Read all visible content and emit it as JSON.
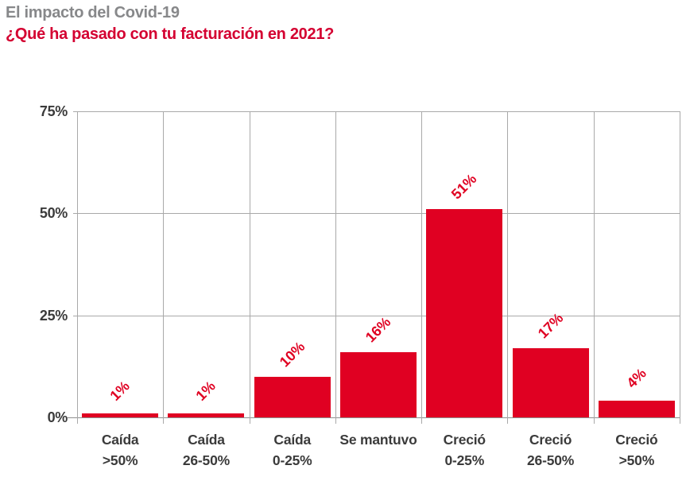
{
  "header": {
    "title": "El impacto del Covid-19",
    "subtitle": "¿Qué ha pasado con tu facturación en 2021?"
  },
  "chart_data": {
    "type": "bar",
    "title": "El impacto del Covid-19",
    "subtitle": "¿Qué ha pasado con tu facturación en 2021?",
    "categories": [
      "Caída >50%",
      "Caída 26-50%",
      "Caída 0-25%",
      "Se mantuvo",
      "Creció 0-25%",
      "Creció 26-50%",
      "Creció >50%"
    ],
    "category_lines": [
      [
        "Caída",
        ">50%"
      ],
      [
        "Caída",
        "26-50%"
      ],
      [
        "Caída",
        "0-25%"
      ],
      [
        "Se mantuvo"
      ],
      [
        "Creció",
        "0-25%"
      ],
      [
        "Creció",
        "26-50%"
      ],
      [
        "Creció",
        ">50%"
      ]
    ],
    "values": [
      1,
      1,
      10,
      16,
      51,
      17,
      4
    ],
    "value_labels": [
      "1%",
      "1%",
      "10%",
      "16%",
      "51%",
      "17%",
      "4%"
    ],
    "value_label_rotation_deg": -45,
    "ylim": [
      0,
      75
    ],
    "yticks": [
      75,
      50,
      25,
      0
    ],
    "ytick_labels": [
      "75%",
      "50%",
      "25%",
      "0%"
    ],
    "grid": true,
    "legend": false,
    "xlabel": "",
    "ylabel": ""
  },
  "colors": {
    "background": "#ffffff",
    "title_gray": "#87888a",
    "subtitle_red": "#d40031",
    "bar_red": "#e00022",
    "axis_text": "#3b3b3b",
    "gridline": "#a9a9a9",
    "axis_line": "#8f8f8f"
  }
}
